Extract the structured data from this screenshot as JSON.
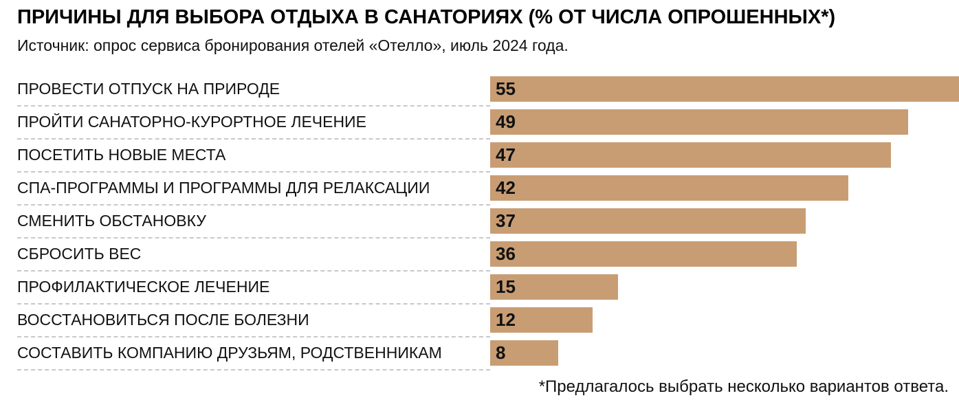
{
  "header": {
    "title": "ПРИЧИНЫ ДЛЯ ВЫБОРА ОТДЫХА В САНАТОРИЯХ (% ОТ ЧИСЛА ОПРОШЕННЫХ*)",
    "source": "Источник: опрос сервиса бронирования отелей «Отелло», июль 2024 года."
  },
  "chart_data": {
    "type": "bar",
    "orientation": "horizontal",
    "title": "ПРИЧИНЫ ДЛЯ ВЫБОРА ОТДЫХА В САНАТОРИЯХ (% ОТ ЧИСЛА ОПРОШЕННЫХ*)",
    "categories": [
      "ПРОВЕСТИ ОТПУСК НА ПРИРОДЕ",
      "ПРОЙТИ САНАТОРНО-КУРОРТНОЕ ЛЕЧЕНИЕ",
      "ПОСЕТИТЬ НОВЫЕ МЕСТА",
      "СПА-ПРОГРАММЫ И ПРОГРАММЫ ДЛЯ РЕЛАКСАЦИИ",
      "СМЕНИТЬ ОБСТАНОВКУ",
      "СБРОСИТЬ ВЕС",
      "ПРОФИЛАКТИЧЕСКОЕ ЛЕЧЕНИЕ",
      "ВОССТАНОВИТЬСЯ ПОСЛЕ БОЛЕЗНИ",
      "СОСТАВИТЬ КОМПАНИЮ ДРУЗЬЯМ, РОДСТВЕННИКАМ"
    ],
    "values": [
      55,
      49,
      47,
      42,
      37,
      36,
      15,
      12,
      8
    ],
    "unit": "% от числа опрошенных",
    "xlim": [
      0,
      55
    ],
    "value_labels": "inside-left",
    "bar_color": "#c89d74",
    "value_color": "#111111",
    "separator_style": "dashed",
    "grid": false,
    "legend_position": "none"
  },
  "footer": {
    "note": "*Предлагалось выбрать несколько вариантов ответа."
  }
}
